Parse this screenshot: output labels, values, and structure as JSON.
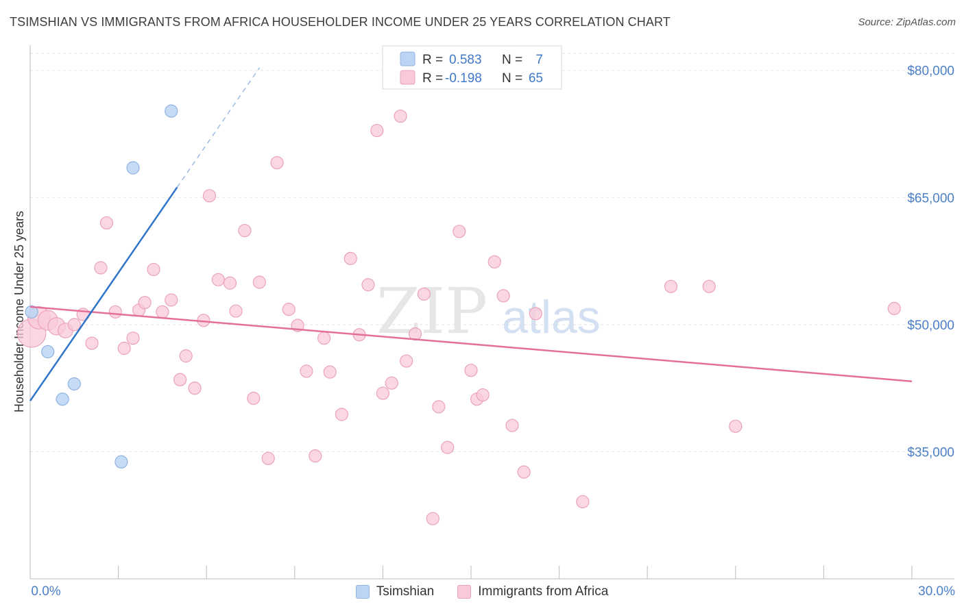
{
  "header": {
    "title": "TSIMSHIAN VS IMMIGRANTS FROM AFRICA HOUSEHOLDER INCOME UNDER 25 YEARS CORRELATION CHART",
    "source": "Source: ZipAtlas.com"
  },
  "watermark": {
    "zip": "ZIP",
    "atlas": "atlas"
  },
  "legend_top": {
    "rows": [
      {
        "r_label": "R =",
        "r_value": "0.583",
        "n_label": "N =",
        "n_value": "7"
      },
      {
        "r_label": "R =",
        "r_value": "-0.198",
        "n_label": "N =",
        "n_value": "65"
      }
    ]
  },
  "legend_bottom": {
    "series_a": "Tsimshian",
    "series_b": "Immigrants from Africa"
  },
  "colors": {
    "blue_fill": "#bcd5f5",
    "blue_stroke": "#8fb2e0",
    "blue_line": "#2f74c8",
    "pink_fill": "#f9c9d8",
    "pink_stroke": "#eaa2ba",
    "pink_line": "#e4709a",
    "tick_label": "#4a7fc7",
    "grid": "#e2e2e2"
  },
  "chart_data": {
    "type": "scatter",
    "title": "TSIMSHIAN VS IMMIGRANTS FROM AFRICA HOUSEHOLDER INCOME UNDER 25 YEARS CORRELATION CHART",
    "xlabel": "",
    "ylabel": "Householder Income Under 25 years",
    "xlim": [
      0,
      30
    ],
    "ylim": [
      20000,
      82000
    ],
    "x_tick_labels": [
      {
        "value": 0,
        "label": "0.0%"
      },
      {
        "value": 30,
        "label": "30.0%"
      }
    ],
    "y_ticks": [
      {
        "value": 80000,
        "label": "$80,000"
      },
      {
        "value": 65000,
        "label": "$65,000"
      },
      {
        "value": 50000,
        "label": "$50,000"
      },
      {
        "value": 35000,
        "label": "$35,000"
      }
    ],
    "series": [
      {
        "name": "Tsimshian",
        "R": 0.583,
        "N": 7,
        "points": [
          {
            "x": 0.05,
            "y": 51500
          },
          {
            "x": 0.6,
            "y": 46800
          },
          {
            "x": 1.1,
            "y": 41200
          },
          {
            "x": 1.5,
            "y": 43000
          },
          {
            "x": 3.1,
            "y": 33800
          },
          {
            "x": 3.5,
            "y": 68500
          },
          {
            "x": 4.8,
            "y": 75200
          }
        ],
        "trend": {
          "x0": 0.0,
          "y0": 41000,
          "x1": 5.0,
          "y1": 66200,
          "dash_x1": 7.8,
          "dash_y1": 80300
        }
      },
      {
        "name": "Immigrants from Africa",
        "R": -0.198,
        "N": 65,
        "points": [
          {
            "x": 0.05,
            "y": 49000,
            "s": 2.3
          },
          {
            "x": 0.3,
            "y": 50800,
            "s": 1.8
          },
          {
            "x": 0.6,
            "y": 50500,
            "s": 1.6
          },
          {
            "x": 0.9,
            "y": 49800,
            "s": 1.4
          },
          {
            "x": 1.2,
            "y": 49300,
            "s": 1.2
          },
          {
            "x": 1.5,
            "y": 50000
          },
          {
            "x": 1.8,
            "y": 51200
          },
          {
            "x": 2.1,
            "y": 47800
          },
          {
            "x": 2.4,
            "y": 56700
          },
          {
            "x": 2.6,
            "y": 62000
          },
          {
            "x": 2.9,
            "y": 51500
          },
          {
            "x": 3.2,
            "y": 47200
          },
          {
            "x": 3.5,
            "y": 48400
          },
          {
            "x": 3.7,
            "y": 51700
          },
          {
            "x": 3.9,
            "y": 52600
          },
          {
            "x": 4.2,
            "y": 56500
          },
          {
            "x": 4.5,
            "y": 51500
          },
          {
            "x": 4.8,
            "y": 52900
          },
          {
            "x": 5.1,
            "y": 43500
          },
          {
            "x": 5.3,
            "y": 46300
          },
          {
            "x": 5.6,
            "y": 42500
          },
          {
            "x": 5.9,
            "y": 50500
          },
          {
            "x": 6.1,
            "y": 65200
          },
          {
            "x": 6.4,
            "y": 55300
          },
          {
            "x": 6.8,
            "y": 54900
          },
          {
            "x": 7.0,
            "y": 51600
          },
          {
            "x": 7.3,
            "y": 61100
          },
          {
            "x": 7.6,
            "y": 41300
          },
          {
            "x": 7.8,
            "y": 55000
          },
          {
            "x": 8.1,
            "y": 34200
          },
          {
            "x": 8.4,
            "y": 69100
          },
          {
            "x": 8.8,
            "y": 51800
          },
          {
            "x": 9.1,
            "y": 49900
          },
          {
            "x": 9.4,
            "y": 44500
          },
          {
            "x": 9.7,
            "y": 34500
          },
          {
            "x": 10.0,
            "y": 48400
          },
          {
            "x": 10.2,
            "y": 44400
          },
          {
            "x": 10.6,
            "y": 39400
          },
          {
            "x": 10.9,
            "y": 57800
          },
          {
            "x": 11.2,
            "y": 48800
          },
          {
            "x": 11.5,
            "y": 54700
          },
          {
            "x": 11.8,
            "y": 72900
          },
          {
            "x": 12.0,
            "y": 41900
          },
          {
            "x": 12.3,
            "y": 43100
          },
          {
            "x": 12.6,
            "y": 74600
          },
          {
            "x": 12.8,
            "y": 45700
          },
          {
            "x": 13.1,
            "y": 48900
          },
          {
            "x": 13.4,
            "y": 53600
          },
          {
            "x": 13.7,
            "y": 27100
          },
          {
            "x": 13.9,
            "y": 40300
          },
          {
            "x": 14.2,
            "y": 35500
          },
          {
            "x": 14.6,
            "y": 61000
          },
          {
            "x": 15.0,
            "y": 44600
          },
          {
            "x": 15.2,
            "y": 41200
          },
          {
            "x": 15.4,
            "y": 41700
          },
          {
            "x": 15.8,
            "y": 57400
          },
          {
            "x": 16.1,
            "y": 53400
          },
          {
            "x": 16.4,
            "y": 38100
          },
          {
            "x": 16.8,
            "y": 32600
          },
          {
            "x": 17.2,
            "y": 51300
          },
          {
            "x": 18.8,
            "y": 29100
          },
          {
            "x": 21.8,
            "y": 54500
          },
          {
            "x": 23.1,
            "y": 54500
          },
          {
            "x": 24.0,
            "y": 38000
          },
          {
            "x": 29.4,
            "y": 51900
          }
        ],
        "trend": {
          "x0": 0.0,
          "y0": 52100,
          "x1": 30.0,
          "y1": 43300
        }
      }
    ]
  }
}
